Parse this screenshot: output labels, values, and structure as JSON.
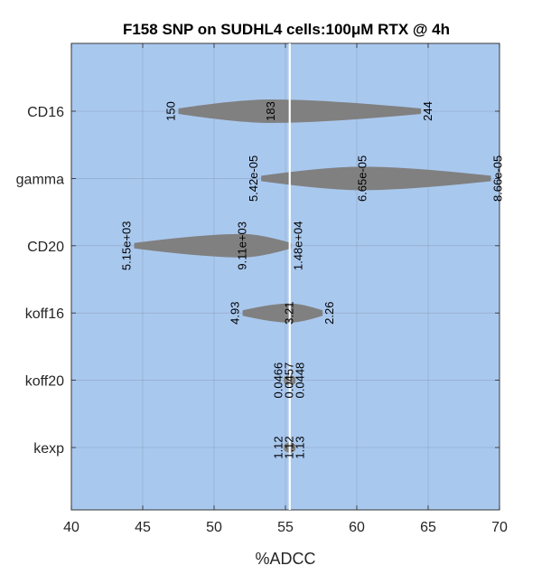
{
  "chart_data": {
    "type": "tornado",
    "title": "F158 SNP on SUDHL4 cells:100μM RTX @ 4h",
    "xlabel": "%ADCC",
    "ylabel": "",
    "xlim": [
      40,
      70
    ],
    "x_ticks": [
      "40",
      "45",
      "50",
      "55",
      "60",
      "65",
      "70"
    ],
    "grid": true,
    "baseline": 55.3,
    "colors": {
      "background": "#a9c8ee",
      "shape": "#808080",
      "baseline": "#ffffff"
    },
    "rows": [
      {
        "name": "CD16",
        "low": 47.5,
        "mid": 54.0,
        "high": 64.5,
        "labels": [
          "150",
          "183",
          "244"
        ]
      },
      {
        "name": "gamma",
        "low": 53.3,
        "mid": 60.4,
        "high": 69.4,
        "labels": [
          "5.42e-05",
          "6.65e-05",
          "8.66e-05"
        ]
      },
      {
        "name": "CD20",
        "low": 44.4,
        "mid": 52.0,
        "high": 55.4,
        "labels": [
          "5.15e+03",
          "9.11e+03",
          "1.48e+04"
        ]
      },
      {
        "name": "koff16",
        "low": 52.0,
        "mid": 55.3,
        "high": 57.6,
        "labels": [
          "4.93",
          "3.21",
          "2.26"
        ]
      },
      {
        "name": "koff20",
        "low": 54.9,
        "mid": 55.3,
        "high": 55.7,
        "labels": [
          "0.0466",
          "0.0457",
          "0.0448"
        ]
      },
      {
        "name": "kexp",
        "low": 54.9,
        "mid": 55.3,
        "high": 55.7,
        "labels": [
          "1.12",
          "1.12",
          "1.13"
        ]
      }
    ]
  }
}
